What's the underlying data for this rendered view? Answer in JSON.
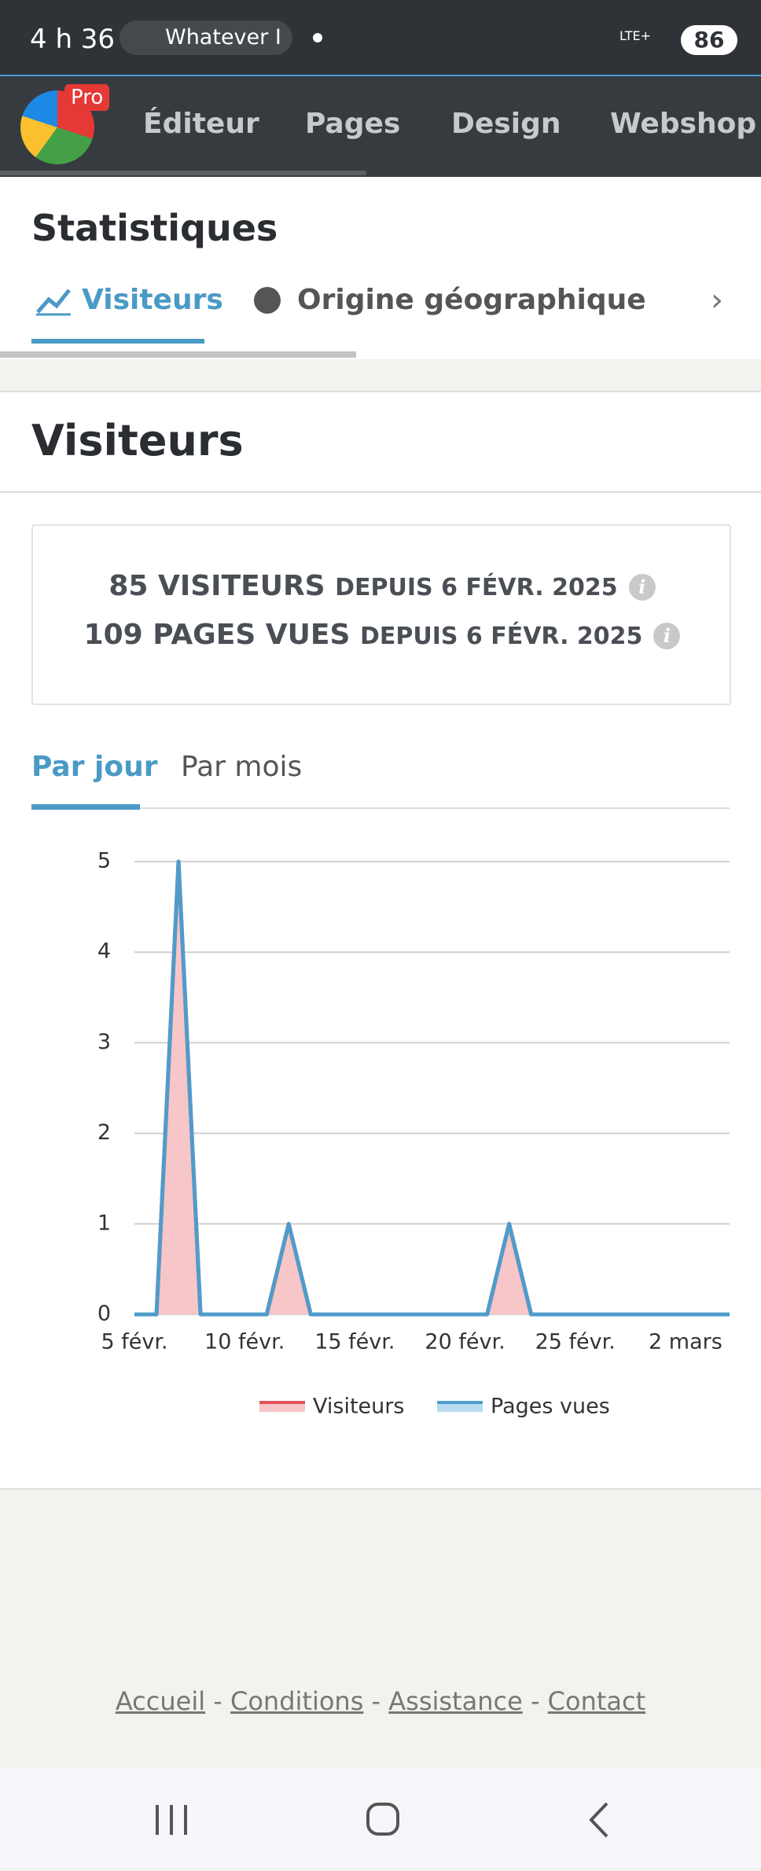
{
  "status_bar": {
    "time": "4 h 36",
    "app": "Whatever I",
    "network": "LTE+",
    "battery": "86"
  },
  "nav": {
    "badge": "Pro",
    "items": [
      "Éditeur",
      "Pages",
      "Design",
      "Webshop"
    ]
  },
  "page_title": "Statistiques",
  "tabs": [
    "Visiteurs",
    "Origine géographique"
  ],
  "section_title": "Visiteurs",
  "summary": [
    {
      "value": "85 VISITEURS",
      "since": "DEPUIS 6 FÉVR. 2025"
    },
    {
      "value": "109 PAGES VUES",
      "since": "DEPUIS 6 FÉVR. 2025"
    }
  ],
  "period_tabs": [
    "Par jour",
    "Par mois"
  ],
  "chart_data": {
    "type": "line",
    "categories": [
      "5 févr.",
      null,
      null,
      null,
      null,
      "10 févr.",
      null,
      null,
      null,
      null,
      "15 févr.",
      null,
      null,
      null,
      null,
      "20 févr.",
      null,
      null,
      null,
      null,
      "25 févr.",
      null,
      null,
      null,
      null,
      "2 mars",
      null,
      null
    ],
    "series": [
      {
        "name": "Visiteurs",
        "color": "#e0525a",
        "fill": "#f6c6c8",
        "values": [
          0,
          0,
          5,
          0,
          0,
          0,
          0,
          1,
          0,
          0,
          0,
          0,
          0,
          0,
          0,
          0,
          0,
          1,
          0,
          0,
          0,
          0,
          0,
          0,
          0,
          0,
          0,
          0
        ]
      },
      {
        "name": "Pages vues",
        "color": "#4f9ccb",
        "values": [
          0,
          0,
          5,
          0,
          0,
          0,
          0,
          1,
          0,
          0,
          0,
          0,
          0,
          0,
          0,
          0,
          0,
          1,
          0,
          0,
          0,
          0,
          0,
          0,
          0,
          0,
          0,
          0
        ]
      }
    ],
    "ylim": [
      0,
      5
    ],
    "yticks": [
      0,
      1,
      2,
      3,
      4,
      5
    ],
    "grid": true,
    "legend": "bottom"
  },
  "footer_links": [
    "Accueil",
    "Conditions",
    "Assistance",
    "Contact"
  ],
  "footer_separator": "-"
}
